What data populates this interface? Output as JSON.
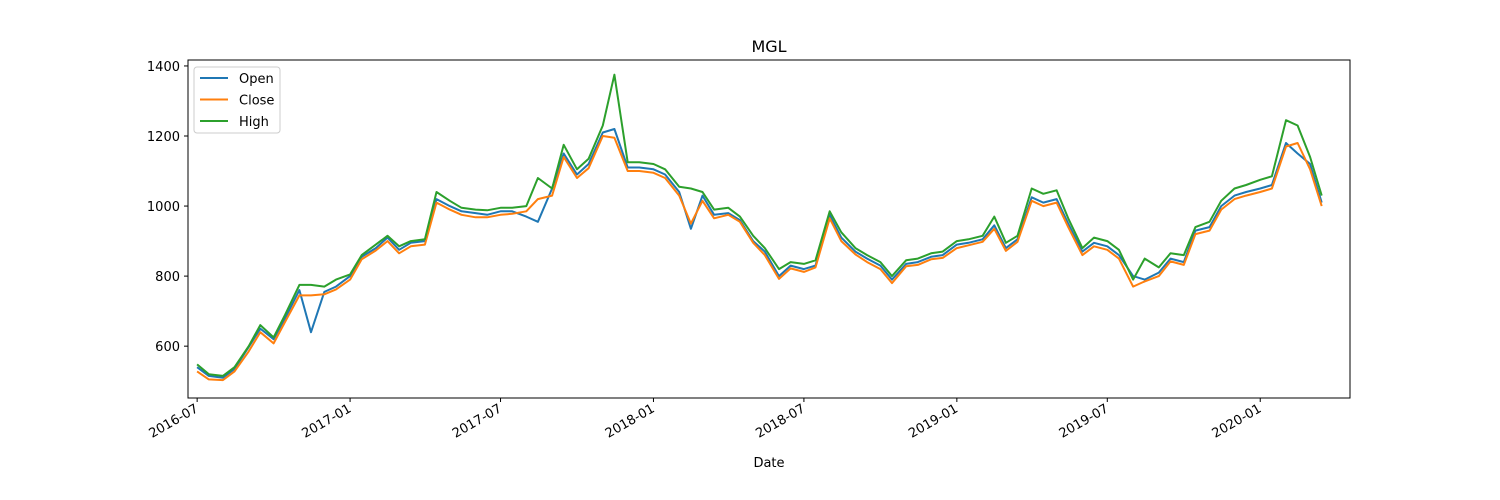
{
  "chart_data": {
    "type": "line",
    "title": "MGL",
    "xlabel": "Date",
    "ylabel": "",
    "x_range": [
      "2016-06-20",
      "2020-04-18"
    ],
    "ylim": [
      452,
      1417
    ],
    "x_ticks": [
      "2016-07",
      "2017-01",
      "2017-07",
      "2018-01",
      "2018-07",
      "2019-01",
      "2019-07",
      "2020-01"
    ],
    "x_tick_dates": [
      "2016-07-01",
      "2017-01-01",
      "2017-07-01",
      "2018-01-01",
      "2018-07-01",
      "2019-01-01",
      "2019-07-01",
      "2020-01-01"
    ],
    "y_ticks": [
      600,
      800,
      1000,
      1200,
      1400
    ],
    "legend_position": "top-left",
    "grid": false,
    "x": [
      "2016-07-01",
      "2016-07-15",
      "2016-08-01",
      "2016-08-15",
      "2016-09-01",
      "2016-09-15",
      "2016-10-01",
      "2016-10-15",
      "2016-11-01",
      "2016-11-15",
      "2016-12-01",
      "2016-12-15",
      "2017-01-01",
      "2017-01-15",
      "2017-02-01",
      "2017-02-15",
      "2017-03-01",
      "2017-03-15",
      "2017-04-01",
      "2017-04-15",
      "2017-05-01",
      "2017-05-15",
      "2017-06-01",
      "2017-06-15",
      "2017-07-01",
      "2017-07-15",
      "2017-08-01",
      "2017-08-15",
      "2017-09-01",
      "2017-09-15",
      "2017-10-01",
      "2017-10-15",
      "2017-11-01",
      "2017-11-15",
      "2017-12-01",
      "2017-12-15",
      "2018-01-01",
      "2018-01-15",
      "2018-02-01",
      "2018-02-15",
      "2018-03-01",
      "2018-03-15",
      "2018-04-01",
      "2018-04-15",
      "2018-05-01",
      "2018-05-15",
      "2018-06-01",
      "2018-06-15",
      "2018-07-01",
      "2018-07-15",
      "2018-08-01",
      "2018-08-15",
      "2018-09-01",
      "2018-09-15",
      "2018-10-01",
      "2018-10-15",
      "2018-11-01",
      "2018-11-15",
      "2018-12-01",
      "2018-12-15",
      "2019-01-01",
      "2019-01-15",
      "2019-02-01",
      "2019-02-15",
      "2019-03-01",
      "2019-03-15",
      "2019-04-01",
      "2019-04-15",
      "2019-05-01",
      "2019-05-15",
      "2019-06-01",
      "2019-06-15",
      "2019-07-01",
      "2019-07-15",
      "2019-08-01",
      "2019-08-15",
      "2019-09-01",
      "2019-09-15",
      "2019-10-01",
      "2019-10-15",
      "2019-11-01",
      "2019-11-15",
      "2019-12-01",
      "2019-12-15",
      "2020-01-01",
      "2020-01-15",
      "2020-02-01",
      "2020-02-15",
      "2020-03-01",
      "2020-03-15"
    ],
    "series": [
      {
        "name": "Open",
        "color": "#1f77b4",
        "values": [
          540,
          515,
          510,
          535,
          598,
          650,
          620,
          680,
          760,
          640,
          755,
          770,
          800,
          855,
          880,
          910,
          875,
          895,
          900,
          1020,
          1000,
          985,
          980,
          975,
          985,
          985,
          970,
          955,
          1050,
          1150,
          1090,
          1120,
          1210,
          1220,
          1110,
          1110,
          1105,
          1090,
          1040,
          935,
          1030,
          975,
          980,
          960,
          900,
          870,
          800,
          830,
          820,
          830,
          975,
          910,
          870,
          850,
          830,
          790,
          835,
          840,
          855,
          860,
          890,
          895,
          905,
          945,
          880,
          905,
          1025,
          1010,
          1020,
          950,
          870,
          895,
          885,
          860,
          800,
          790,
          810,
          850,
          840,
          930,
          940,
          1000,
          1030,
          1040,
          1050,
          1060,
          1180,
          1150,
          1120,
          1010
        ]
      },
      {
        "name": "Close",
        "color": "#ff7f0e",
        "values": [
          528,
          505,
          503,
          528,
          585,
          640,
          608,
          670,
          745,
          745,
          748,
          762,
          790,
          848,
          873,
          900,
          865,
          885,
          890,
          1010,
          990,
          975,
          968,
          968,
          975,
          978,
          985,
          1020,
          1030,
          1140,
          1080,
          1108,
          1200,
          1195,
          1100,
          1100,
          1095,
          1080,
          1030,
          950,
          1015,
          965,
          975,
          955,
          895,
          860,
          792,
          822,
          812,
          825,
          965,
          900,
          862,
          840,
          820,
          780,
          828,
          832,
          848,
          852,
          880,
          888,
          898,
          935,
          872,
          898,
          1015,
          1000,
          1010,
          940,
          860,
          885,
          875,
          850,
          770,
          785,
          800,
          842,
          832,
          920,
          930,
          990,
          1020,
          1030,
          1040,
          1050,
          1170,
          1180,
          1105,
          1000
        ]
      },
      {
        "name": "High",
        "color": "#2ca02c",
        "values": [
          548,
          520,
          515,
          540,
          600,
          660,
          625,
          690,
          775,
          775,
          770,
          790,
          805,
          860,
          890,
          915,
          885,
          900,
          905,
          1040,
          1015,
          995,
          990,
          988,
          995,
          995,
          1000,
          1080,
          1050,
          1175,
          1105,
          1135,
          1230,
          1375,
          1125,
          1125,
          1120,
          1105,
          1055,
          1050,
          1040,
          990,
          995,
          970,
          915,
          880,
          820,
          840,
          835,
          845,
          985,
          925,
          880,
          860,
          840,
          800,
          845,
          850,
          865,
          870,
          900,
          905,
          915,
          970,
          895,
          915,
          1050,
          1035,
          1045,
          965,
          880,
          910,
          900,
          875,
          790,
          850,
          825,
          865,
          860,
          940,
          955,
          1015,
          1050,
          1060,
          1075,
          1085,
          1245,
          1230,
          1140,
          1030
        ]
      }
    ]
  }
}
